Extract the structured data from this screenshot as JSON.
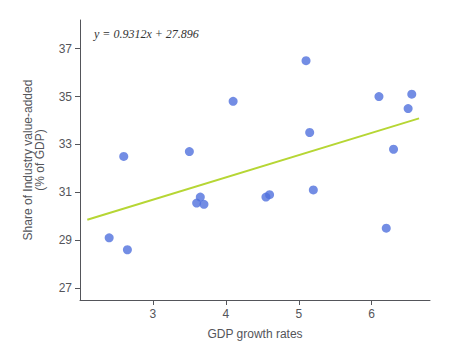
{
  "chart_data": {
    "type": "scatter",
    "xlabel": "GDP growth rates",
    "ylabel": "Share of Industry value-added\n(% of GDP)",
    "xlim": [
      2.0,
      6.8
    ],
    "ylim": [
      26.5,
      38.2
    ],
    "xticks": [
      3,
      4,
      5,
      6
    ],
    "yticks": [
      27,
      29,
      31,
      33,
      35,
      37
    ],
    "grid": false,
    "series": [
      {
        "type": "scatter",
        "x": [
          2.4,
          2.6,
          2.65,
          3.5,
          3.6,
          3.65,
          3.7,
          4.1,
          4.55,
          4.6,
          5.1,
          5.15,
          5.2,
          6.1,
          6.2,
          6.3,
          6.5,
          6.55
        ],
        "values": [
          29.1,
          32.5,
          28.6,
          32.7,
          30.55,
          30.8,
          30.5,
          34.8,
          30.8,
          30.9,
          36.5,
          33.5,
          31.1,
          35.0,
          29.5,
          32.8,
          34.5,
          35.1
        ]
      },
      {
        "type": "line",
        "x": [
          2.1,
          6.65
        ],
        "values": [
          29.85152,
          34.08848
        ]
      }
    ],
    "annotations": [
      {
        "text": "y = 0.9312x + 27.896"
      }
    ]
  }
}
